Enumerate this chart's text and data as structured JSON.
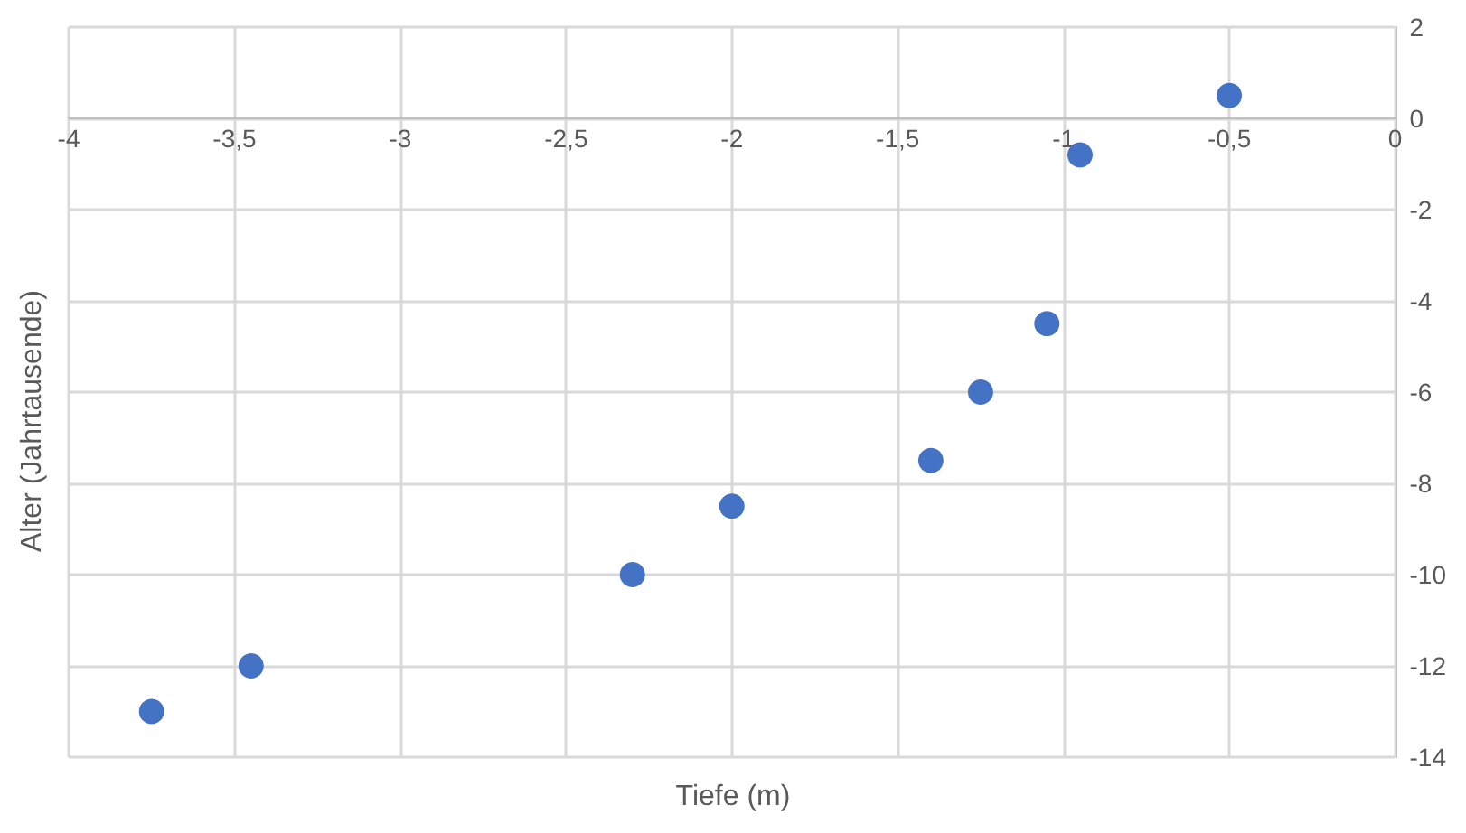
{
  "chart_data": {
    "type": "scatter",
    "xlabel": "Tiefe (m)",
    "ylabel": "Alter (Jahrtausende)",
    "x": [
      -3.75,
      -3.45,
      -2.3,
      -2,
      -1.4,
      -1.25,
      -1.05,
      -0.95,
      -0.5
    ],
    "series": [
      {
        "color": "#4472c4",
        "values": [
          -13,
          -12,
          -10,
          -8.5,
          -7.5,
          -6,
          -4.5,
          -0.8,
          0.5
        ]
      }
    ],
    "xlim": [
      -4,
      0
    ],
    "xticks": [
      -4,
      {
        "value": -3.5,
        "label": "-3,5"
      },
      -3,
      {
        "value": -2.5,
        "label": "-2,5"
      },
      -2,
      {
        "value": -1.5,
        "label": "-1,5"
      },
      -1,
      {
        "value": -0.5,
        "label": "-0,5"
      },
      0
    ],
    "ylim": [
      -14,
      2
    ],
    "yticks": [
      -14,
      -12,
      -10,
      -8,
      -6,
      -4,
      -2,
      0,
      2
    ],
    "grid": true,
    "marker": "circle"
  }
}
